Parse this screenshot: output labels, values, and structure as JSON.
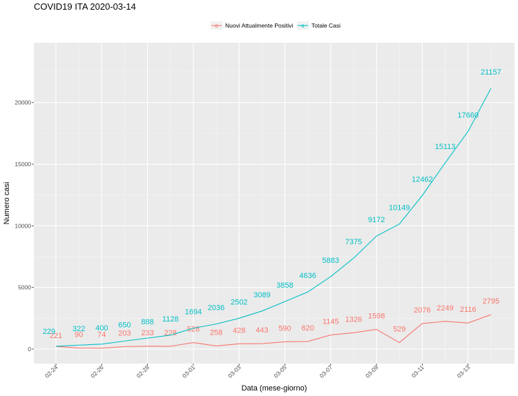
{
  "chart_data": {
    "type": "line",
    "title": "COVID19 ITA 2020-03-14",
    "xlabel": "Data (mese-giorno)",
    "ylabel": "Numero casi",
    "x": [
      "02-24",
      "02-25",
      "02-26",
      "02-27",
      "02-28",
      "02-29",
      "03-01",
      "03-02",
      "03-03",
      "03-04",
      "03-05",
      "03-06",
      "03-07",
      "03-08",
      "03-09",
      "03-10",
      "03-11",
      "03-12",
      "03-13",
      "03-14"
    ],
    "x_tick_labels": [
      "02-24",
      "02-26",
      "02-28",
      "03-01",
      "03-03",
      "03-05",
      "03-07",
      "03-09",
      "03-11",
      "03-13"
    ],
    "y_ticks": [
      0,
      5000,
      10000,
      15000,
      20000
    ],
    "ylim": [
      -1100,
      24500
    ],
    "grid": true,
    "legend_position": "top",
    "series": [
      {
        "name": "Nuovi Attualmente Positivi",
        "color": "#f8766d",
        "values": [
          221,
          90,
          74,
          203,
          233,
          228,
          528,
          258,
          428,
          443,
          590,
          620,
          1145,
          1326,
          1598,
          529,
          2076,
          2249,
          2116,
          2795
        ]
      },
      {
        "name": "Totale Casi",
        "color": "#00bfc4",
        "values": [
          229,
          322,
          400,
          650,
          888,
          1128,
          1694,
          2036,
          2502,
          3089,
          3858,
          4636,
          5883,
          7375,
          9172,
          10149,
          12462,
          15113,
          17660,
          21157
        ]
      }
    ]
  }
}
